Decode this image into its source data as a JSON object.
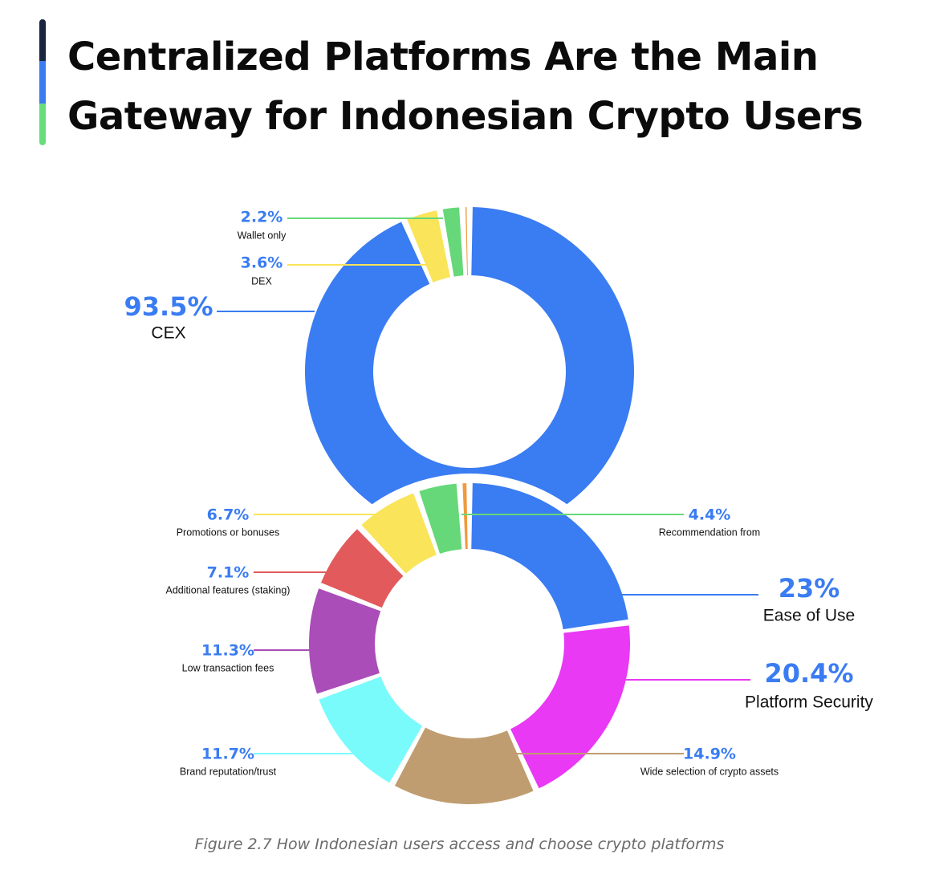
{
  "title": "Centralized Platforms Are the Main Gateway for Indonesian Crypto Users",
  "accent_bar_colors": [
    "#1b2540",
    "#3b7bf0",
    "#67dd7b"
  ],
  "caption": "Figure 2.7 How Indonesian users access and choose crypto platforms",
  "chart_data": [
    {
      "type": "pie",
      "variant": "donut",
      "slices": [
        {
          "label": "CEX",
          "value": 93.5,
          "display": "93.5%",
          "color": "#3a7cf2"
        },
        {
          "label": "DEX",
          "value": 3.6,
          "display": "3.6%",
          "color": "#f9e45a"
        },
        {
          "label": "Wallet only",
          "value": 2.2,
          "display": "2.2%",
          "color": "#66d879"
        },
        {
          "label": "",
          "value": 0.7,
          "display": "",
          "color": "#ef9a3e"
        }
      ]
    },
    {
      "type": "pie",
      "variant": "donut",
      "slices": [
        {
          "label": "Ease of Use",
          "value": 23,
          "display": "23%",
          "color": "#3a7cf2"
        },
        {
          "label": "Platform Security",
          "value": 20.4,
          "display": "20.4%",
          "color": "#e939f4"
        },
        {
          "label": "Wide selection of crypto assets",
          "value": 14.9,
          "display": "14.9%",
          "color": "#bf9d70"
        },
        {
          "label": "Brand reputation/trust",
          "value": 11.7,
          "display": "11.7%",
          "color": "#79fbfc"
        },
        {
          "label": "Low transaction fees",
          "value": 11.3,
          "display": "11.3%",
          "color": "#aa4db8"
        },
        {
          "label": "Additional features (staking)",
          "value": 7.1,
          "display": "7.1%",
          "color": "#e25a5c"
        },
        {
          "label": "Promotions or bonuses",
          "value": 6.7,
          "display": "6.7%",
          "color": "#f9e45a"
        },
        {
          "label": "Recommendation from",
          "value": 4.4,
          "display": "4.4%",
          "color": "#66d879"
        },
        {
          "label": "",
          "value": 1.0,
          "display": "",
          "color": "#ef9a3e"
        }
      ]
    }
  ]
}
